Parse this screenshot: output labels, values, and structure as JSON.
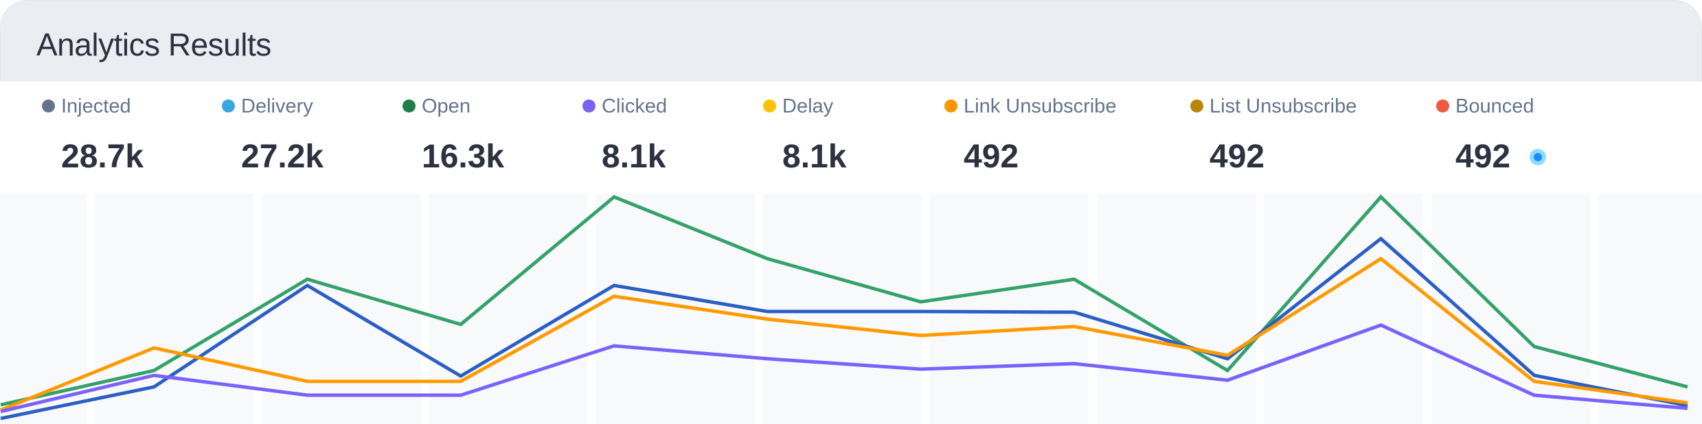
{
  "header": {
    "title": "Analytics Results"
  },
  "legend": [
    {
      "label": "Injected",
      "value": "28.7k",
      "color": "#64748b"
    },
    {
      "label": "Delivery",
      "value": "27.2k",
      "color": "#3aa8e0"
    },
    {
      "label": "Open",
      "value": "16.3k",
      "color": "#1e7e45"
    },
    {
      "label": "Clicked",
      "value": "8.1k",
      "color": "#7b61f0"
    },
    {
      "label": "Delay",
      "value": "8.1k",
      "color": "#ffc107"
    },
    {
      "label": "Link Unsubscribe",
      "value": "492",
      "color": "#ff9500"
    },
    {
      "label": "List Unsubscribe",
      "value": "492",
      "color": "#b8860b"
    },
    {
      "label": "Bounced",
      "value": "492",
      "color": "#ef5a45",
      "live_indicator": true
    }
  ],
  "chart_data": {
    "type": "line",
    "title": "",
    "xlabel": "",
    "ylabel": "",
    "ylim": [
      0,
      100
    ],
    "grid": "alternating vertical column bands",
    "x": [
      0,
      1,
      2,
      3,
      4,
      5,
      6,
      7,
      8,
      9,
      10,
      11
    ],
    "series": [
      {
        "color": "#34a26a",
        "values": [
          8.3,
          23.2,
          62.8,
          43.2,
          98.5,
          71.7,
          53,
          62.8,
          23.2,
          98.5,
          33.6,
          16.1
        ]
      },
      {
        "color": "#2b5fc4",
        "values": [
          2.4,
          16.1,
          60.1,
          20.8,
          60.1,
          48.8,
          48.8,
          48.5,
          28.3,
          80.4,
          21.1,
          8.0
        ]
      },
      {
        "color": "#ff9a00",
        "values": [
          6,
          33,
          18.5,
          18.5,
          55.4,
          45.5,
          38.4,
          42.3,
          29.8,
          71.7,
          18.5,
          9.2
        ]
      },
      {
        "color": "#7b61ff",
        "values": [
          5.4,
          21.1,
          12.5,
          12.5,
          33.9,
          28.3,
          23.8,
          26.2,
          19,
          42.9,
          12.5,
          6.8
        ]
      }
    ]
  }
}
